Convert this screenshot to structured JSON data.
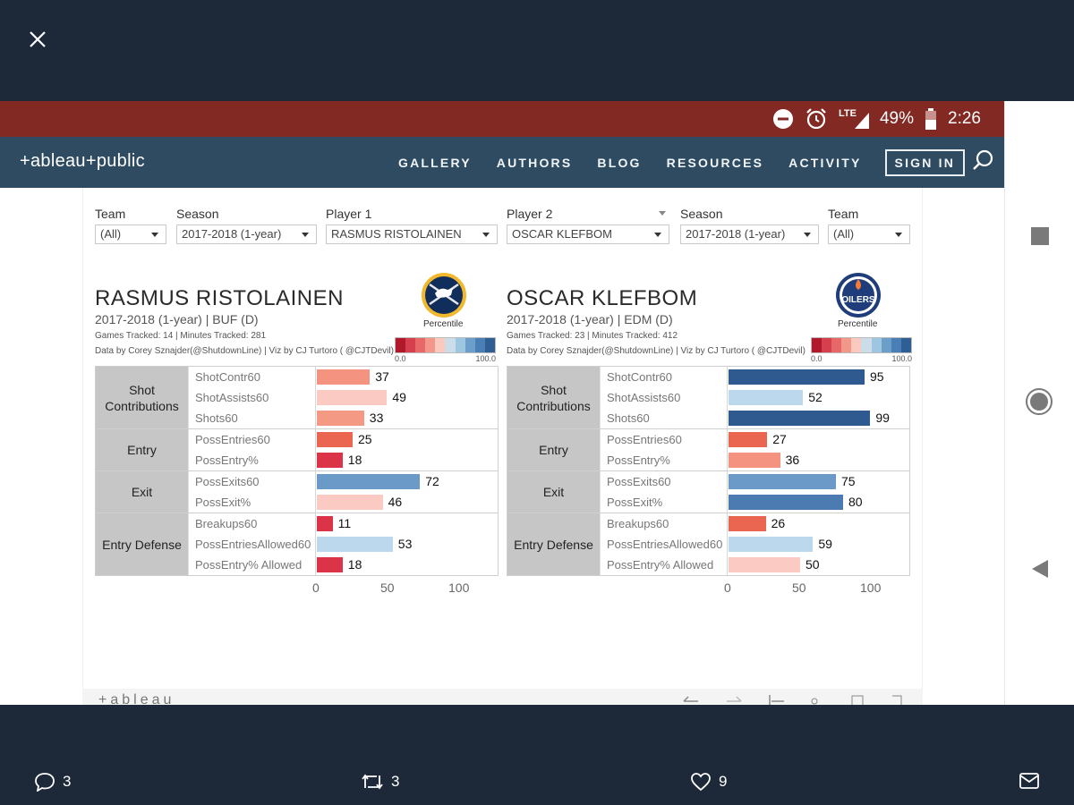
{
  "status": {
    "battery": "49%",
    "time": "2:26",
    "network": "LTE"
  },
  "site": {
    "logo": "+ableau+public",
    "nav": [
      "GALLERY",
      "AUTHORS",
      "BLOG",
      "RESOURCES",
      "ACTIVITY"
    ],
    "sign_in": "SIGN IN"
  },
  "filters": [
    {
      "label": "Team",
      "value": "(All)"
    },
    {
      "label": "Season",
      "value": "2017-2018 (1-year)"
    },
    {
      "label": "Player 1",
      "value": "RASMUS RISTOLAINEN"
    },
    {
      "label": "Player 2",
      "value": "OSCAR KLEFBOM"
    },
    {
      "label": "Season",
      "value": "2017-2018 (1-year)"
    },
    {
      "label": "Team",
      "value": "(All)"
    }
  ],
  "players": [
    {
      "name": "RASMUS RISTOLAINEN",
      "sub": "2017-2018 (1-year) | BUF (D)",
      "tracked": "Games Tracked: 14  | Minutes Tracked: 281",
      "credit": "Data by Corey Sznajder(@ShutdownLine) | Viz by CJ Turtoro ( @CJTDevil)",
      "logo_icon": "buffalo-sabres-logo",
      "percentile_label": "Percentile",
      "legend_min": "0.0",
      "legend_max": "100.0"
    },
    {
      "name": "OSCAR KLEFBOM",
      "sub": "2017-2018 (1-year) | EDM (D)",
      "tracked": "Games Tracked: 23  | Minutes Tracked: 412",
      "credit": "Data by Corey Sznajder(@ShutdownLine) | Viz by CJ Turtoro ( @CJTDevil)",
      "logo_icon": "edmonton-oilers-logo",
      "logo_text": "OILERS",
      "percentile_label": "Percentile",
      "legend_min": "0.0",
      "legend_max": "100.0"
    }
  ],
  "legend_colors": [
    "#b2182b",
    "#d6404e",
    "#e8686a",
    "#f3978a",
    "#fbc9bd",
    "#cbdde9",
    "#9ec6e0",
    "#6b9fca",
    "#4a7fb5",
    "#2f5e94"
  ],
  "axis_ticks": [
    "0",
    "50",
    "100"
  ],
  "chart_data": [
    {
      "type": "bar",
      "player": "RASMUS RISTOLAINEN",
      "xlim": [
        0,
        100
      ],
      "groups": [
        {
          "name": "Shot Contributions",
          "metrics": [
            {
              "label": "ShotContr60",
              "value": 37,
              "color": "#f4937f"
            },
            {
              "label": "ShotAssists60",
              "value": 49,
              "color": "#fbcbc3"
            },
            {
              "label": "Shots60",
              "value": 33,
              "color": "#f49a84"
            }
          ]
        },
        {
          "name": "Entry",
          "metrics": [
            {
              "label": "PossEntries60",
              "value": 25,
              "color": "#ea6651"
            },
            {
              "label": "PossEntry%",
              "value": 18,
              "color": "#db3347"
            }
          ]
        },
        {
          "name": "Exit",
          "metrics": [
            {
              "label": "PossExits60",
              "value": 72,
              "color": "#6b9ac8"
            },
            {
              "label": "PossExit%",
              "value": 46,
              "color": "#fbcbc3"
            }
          ]
        },
        {
          "name": "Entry Defense",
          "metrics": [
            {
              "label": "Breakups60",
              "value": 11,
              "color": "#db3347"
            },
            {
              "label": "PossEntriesAllowed60",
              "value": 53,
              "color": "#bcd8ec"
            },
            {
              "label": "PossEntry% Allowed",
              "value": 18,
              "color": "#db3347"
            }
          ]
        }
      ]
    },
    {
      "type": "bar",
      "player": "OSCAR KLEFBOM",
      "xlim": [
        0,
        100
      ],
      "groups": [
        {
          "name": "Shot Contributions",
          "metrics": [
            {
              "label": "ShotContr60",
              "value": 95,
              "color": "#2e5a8f"
            },
            {
              "label": "ShotAssists60",
              "value": 52,
              "color": "#bcd8ec"
            },
            {
              "label": "Shots60",
              "value": 99,
              "color": "#2e5a8f"
            }
          ]
        },
        {
          "name": "Entry",
          "metrics": [
            {
              "label": "PossEntries60",
              "value": 27,
              "color": "#ea6651"
            },
            {
              "label": "PossEntry%",
              "value": 36,
              "color": "#f4937f"
            }
          ]
        },
        {
          "name": "Exit",
          "metrics": [
            {
              "label": "PossExits60",
              "value": 75,
              "color": "#6b9ac8"
            },
            {
              "label": "PossExit%",
              "value": 80,
              "color": "#4b7bb0"
            }
          ]
        },
        {
          "name": "Entry Defense",
          "metrics": [
            {
              "label": "Breakups60",
              "value": 26,
              "color": "#ea6651"
            },
            {
              "label": "PossEntriesAllowed60",
              "value": 59,
              "color": "#bcd8ec"
            },
            {
              "label": "PossEntry% Allowed",
              "value": 50,
              "color": "#fbcbc3"
            }
          ]
        }
      ]
    }
  ],
  "footer": {
    "brand": "+ableau"
  },
  "tweet_actions": {
    "replies": "3",
    "retweets": "3",
    "likes": "9"
  }
}
